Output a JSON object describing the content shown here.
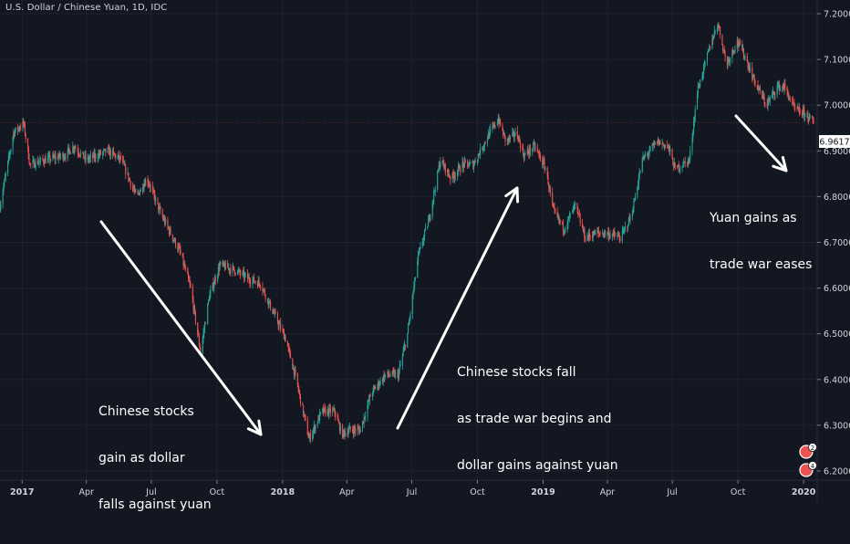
{
  "header": {
    "title": "U.S. Dollar / Chinese Yuan, 1D, IDC"
  },
  "price_badge": {
    "value": "6.9617"
  },
  "event_badges": [
    "2",
    "4"
  ],
  "annotations": [
    {
      "lines": [
        "Chinese stocks",
        "gain as dollar",
        "falls against yuan"
      ]
    },
    {
      "lines": [
        "Chinese stocks fall",
        "as trade war begins and",
        "dollar gains against yuan"
      ]
    },
    {
      "lines": [
        "Yuan gains as",
        "trade war eases"
      ]
    }
  ],
  "colors": {
    "background": "#131722",
    "up": "#26a69a",
    "down": "#ef5350",
    "text": "#d1d4dc",
    "grid": "#1e222d",
    "arrow": "#ffffff"
  },
  "chart_data": {
    "type": "candlestick",
    "title": "U.S. Dollar / Chinese Yuan, 1D, IDC",
    "xlabel": "",
    "ylabel": "",
    "y_axis_position": "right",
    "ylim": [
      6.18,
      7.23
    ],
    "y_ticks": [
      "7.2000",
      "7.1000",
      "7.0000",
      "6.9000",
      "6.8000",
      "6.7000",
      "6.6000",
      "6.5000",
      "6.4000",
      "6.3000",
      "6.2000"
    ],
    "x_ticks": [
      "2017",
      "Apr",
      "Jul",
      "Oct",
      "2018",
      "Apr",
      "Jul",
      "Oct",
      "2019",
      "Apr",
      "Jul",
      "Oct",
      "2020"
    ],
    "x_range": [
      "2016-12-01",
      "2020-01-20"
    ],
    "last_price": 6.9617,
    "grid": true,
    "series": [
      {
        "points": [
          [
            "2016-12-01",
            6.78
          ],
          [
            "2016-12-20",
            6.94
          ],
          [
            "2017-01-03",
            6.96
          ],
          [
            "2017-01-12",
            6.87
          ],
          [
            "2017-02-01",
            6.88
          ],
          [
            "2017-03-01",
            6.89
          ],
          [
            "2017-03-15",
            6.91
          ],
          [
            "2017-04-01",
            6.88
          ],
          [
            "2017-05-01",
            6.9
          ],
          [
            "2017-05-20",
            6.88
          ],
          [
            "2017-06-10",
            6.8
          ],
          [
            "2017-06-25",
            6.84
          ],
          [
            "2017-07-15",
            6.76
          ],
          [
            "2017-08-10",
            6.68
          ],
          [
            "2017-08-25",
            6.6
          ],
          [
            "2017-09-08",
            6.46
          ],
          [
            "2017-09-20",
            6.58
          ],
          [
            "2017-10-05",
            6.65
          ],
          [
            "2017-10-25",
            6.64
          ],
          [
            "2017-11-15",
            6.62
          ],
          [
            "2017-12-01",
            6.61
          ],
          [
            "2017-12-15",
            6.56
          ],
          [
            "2018-01-05",
            6.49
          ],
          [
            "2018-01-20",
            6.4
          ],
          [
            "2018-02-07",
            6.27
          ],
          [
            "2018-02-25",
            6.33
          ],
          [
            "2018-03-15",
            6.33
          ],
          [
            "2018-03-25",
            6.28
          ],
          [
            "2018-04-05",
            6.29
          ],
          [
            "2018-04-20",
            6.29
          ],
          [
            "2018-05-05",
            6.37
          ],
          [
            "2018-05-25",
            6.41
          ],
          [
            "2018-06-12",
            6.41
          ],
          [
            "2018-06-25",
            6.5
          ],
          [
            "2018-07-10",
            6.67
          ],
          [
            "2018-07-25",
            6.75
          ],
          [
            "2018-08-10",
            6.88
          ],
          [
            "2018-08-25",
            6.84
          ],
          [
            "2018-09-10",
            6.87
          ],
          [
            "2018-09-25",
            6.87
          ],
          [
            "2018-10-15",
            6.93
          ],
          [
            "2018-10-30",
            6.97
          ],
          [
            "2018-11-10",
            6.92
          ],
          [
            "2018-11-25",
            6.94
          ],
          [
            "2018-12-05",
            6.89
          ],
          [
            "2018-12-20",
            6.91
          ],
          [
            "2019-01-05",
            6.86
          ],
          [
            "2019-01-15",
            6.77
          ],
          [
            "2019-01-30",
            6.73
          ],
          [
            "2019-02-15",
            6.78
          ],
          [
            "2019-03-01",
            6.71
          ],
          [
            "2019-03-15",
            6.72
          ],
          [
            "2019-04-01",
            6.72
          ],
          [
            "2019-04-20",
            6.71
          ],
          [
            "2019-05-05",
            6.76
          ],
          [
            "2019-05-20",
            6.88
          ],
          [
            "2019-06-10",
            6.92
          ],
          [
            "2019-06-25",
            6.91
          ],
          [
            "2019-07-05",
            6.86
          ],
          [
            "2019-07-25",
            6.88
          ],
          [
            "2019-08-05",
            7.03
          ],
          [
            "2019-08-25",
            7.14
          ],
          [
            "2019-09-03",
            7.18
          ],
          [
            "2019-09-15",
            7.09
          ],
          [
            "2019-09-30",
            7.14
          ],
          [
            "2019-10-10",
            7.11
          ],
          [
            "2019-10-25",
            7.05
          ],
          [
            "2019-11-10",
            7.0
          ],
          [
            "2019-11-25",
            7.04
          ],
          [
            "2019-12-05",
            7.04
          ],
          [
            "2019-12-20",
            6.99
          ],
          [
            "2020-01-05",
            6.98
          ],
          [
            "2020-01-15",
            6.96
          ]
        ]
      }
    ]
  }
}
